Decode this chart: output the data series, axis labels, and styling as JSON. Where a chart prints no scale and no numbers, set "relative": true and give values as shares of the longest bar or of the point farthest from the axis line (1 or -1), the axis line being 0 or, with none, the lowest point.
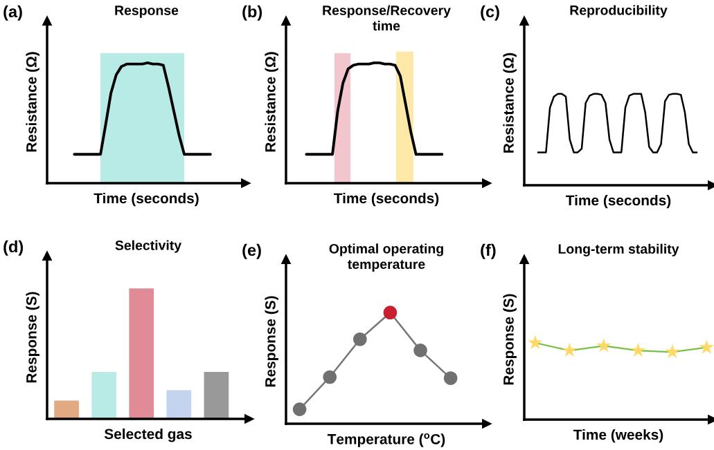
{
  "chart_data": [
    {
      "type": "line",
      "title": "Response",
      "xlabel": "Time (seconds)",
      "ylabel": "Resistance (Ω)",
      "annotations": [
        "(a)"
      ],
      "relative": true,
      "tick_labels": false,
      "marker": "none",
      "line_style": "solid",
      "categories": [
        null,
        null,
        null,
        null,
        null,
        null,
        null,
        null,
        null,
        null,
        null,
        null,
        null,
        null,
        null,
        null,
        null,
        null,
        null,
        null,
        null,
        null,
        null,
        null,
        null,
        null,
        null
      ],
      "series": [
        {
          "color": "#000000",
          "values": [
            0.24,
            0.24,
            0.24,
            0.24,
            0.24,
            0.24,
            0.49,
            0.75,
            0.9,
            0.97,
            0.99,
            0.99,
            0.99,
            0.99,
            1,
            0.99,
            0.99,
            0.98,
            0.8,
            0.6,
            0.4,
            0.24,
            0.24,
            0.24,
            0.24,
            0.24,
            0.24
          ]
        }
      ]
    },
    {
      "type": "line",
      "title": "Response/Recovery\ntime",
      "xlabel": "Time (seconds)",
      "ylabel": "Resistance (Ω)",
      "annotations": [
        "(b)"
      ],
      "relative": true,
      "tick_labels": false,
      "marker": "none",
      "line_style": "solid",
      "categories": [
        null,
        null,
        null,
        null,
        null,
        null,
        null,
        null,
        null,
        null,
        null,
        null,
        null,
        null,
        null,
        null,
        null,
        null,
        null,
        null,
        null,
        null,
        null,
        null,
        null,
        null,
        null
      ],
      "series": [
        {
          "color": "#000000",
          "values": [
            0.24,
            0.24,
            0.24,
            0.24,
            0.24,
            0.24,
            0.6,
            0.83,
            0.95,
            0.98,
            0.99,
            0.99,
            0.99,
            1,
            1,
            0.99,
            0.99,
            0.98,
            0.89,
            0.66,
            0.43,
            0.24,
            0.24,
            0.24,
            0.24,
            0.24,
            0.24
          ]
        }
      ]
    },
    {
      "type": "line",
      "title": "Reproducibility",
      "xlabel": "Time (seconds)",
      "ylabel": "Resistance (Ω)",
      "annotations": [
        "(c)"
      ],
      "relative": true,
      "tick_labels": false,
      "marker": "none",
      "line_style": "solid",
      "categories": [
        null,
        null,
        null,
        null,
        null,
        null,
        null,
        null,
        null,
        null,
        null,
        null,
        null,
        null,
        null,
        null,
        null,
        null,
        null,
        null,
        null,
        null,
        null,
        null,
        null,
        null,
        null,
        null,
        null,
        null,
        null,
        null,
        null,
        null,
        null,
        null,
        null,
        null,
        null,
        null,
        null
      ],
      "series": [
        {
          "color": "#000000",
          "values": [
            0.36,
            0.36,
            0.36,
            0.85,
            0.97,
            1,
            1,
            0.97,
            0.5,
            0.36,
            0.36,
            0.4,
            0.9,
            0.98,
            1,
            1,
            0.99,
            0.9,
            0.5,
            0.36,
            0.36,
            0.36,
            0.85,
            0.98,
            1,
            1,
            1,
            0.8,
            0.42,
            0.36,
            0.36,
            0.45,
            0.92,
            0.99,
            1,
            1,
            0.99,
            0.8,
            0.45,
            0.36,
            0.36
          ]
        }
      ]
    },
    {
      "type": "bar",
      "title": "Selectivity",
      "xlabel": "Selected gas",
      "ylabel": "Response (S)",
      "annotations": [
        "(d)"
      ],
      "relative": true,
      "tick_labels": false,
      "categories": [
        null,
        null,
        null,
        null,
        null
      ],
      "values": [
        0.14,
        0.36,
        1,
        0.22,
        0.36
      ],
      "colors": [
        "#e2aa82",
        "#b8ebe6",
        "#e08b95",
        "#c5d4ee",
        "#999999"
      ]
    },
    {
      "type": "line",
      "title": "Optimal operating\ntemperature",
      "xlabel": "Temperature ($^{o}$C)",
      "ylabel": "Response (S)",
      "annotations": [
        "(e)"
      ],
      "relative": true,
      "tick_labels": false,
      "marker": "circle",
      "line_style": "solid",
      "categories": [
        null,
        null,
        null,
        null,
        null,
        null
      ],
      "series": [
        {
          "color": "#777777",
          "colors": [
            "#707070",
            "#707070",
            "#707070",
            "#c8202f",
            "#707070",
            "#707070"
          ],
          "values": [
            0.13,
            0.42,
            0.76,
            1,
            0.66,
            0.41
          ]
        }
      ]
    },
    {
      "type": "line",
      "title": "Long-term stability",
      "xlabel": "Time (weeks)",
      "ylabel": "Response (S)",
      "annotations": [
        "(f)"
      ],
      "relative": true,
      "tick_labels": false,
      "marker": "star",
      "line_style": "solid",
      "categories": [
        null,
        null,
        null,
        null,
        null,
        null
      ],
      "series": [
        {
          "color": "#77c043",
          "colors": [
            "#ffd966",
            "#ffd966",
            "#ffd966",
            "#ffd966",
            "#ffd966",
            "#ffd966"
          ],
          "values": [
            1,
            0.9,
            0.96,
            0.9,
            0.88,
            0.94
          ]
        }
      ]
    }
  ]
}
